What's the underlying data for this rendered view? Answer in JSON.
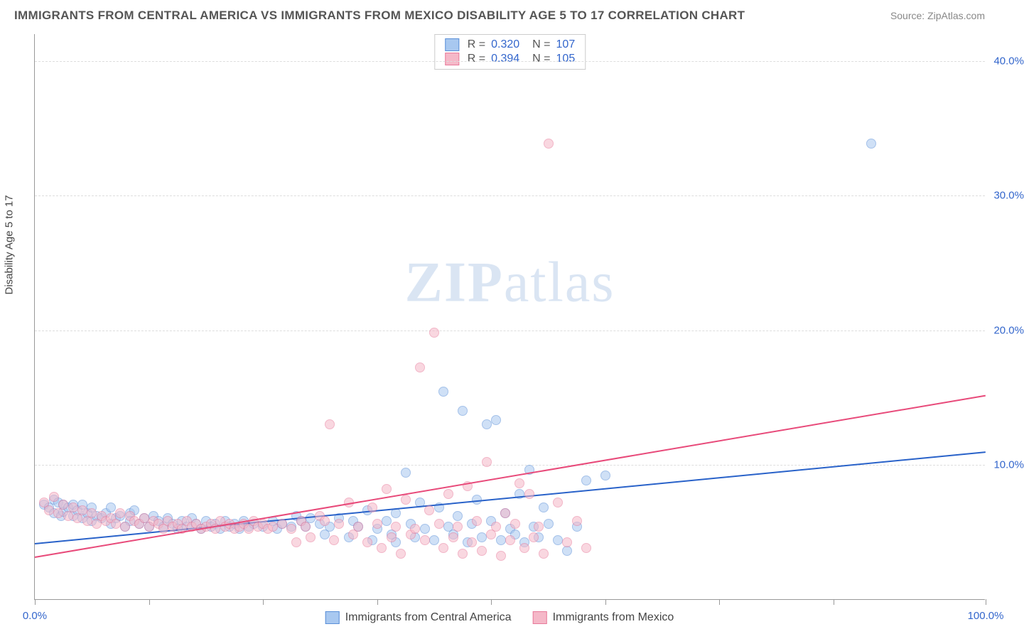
{
  "title": "IMMIGRANTS FROM CENTRAL AMERICA VS IMMIGRANTS FROM MEXICO DISABILITY AGE 5 TO 17 CORRELATION CHART",
  "source": "Source: ZipAtlas.com",
  "ylabel": "Disability Age 5 to 17",
  "watermark_bold": "ZIP",
  "watermark_light": "atlas",
  "chart": {
    "type": "scatter",
    "xlim": [
      0,
      100
    ],
    "ylim": [
      0,
      42
    ],
    "x_ticks": [
      0,
      12,
      24,
      36,
      48,
      60,
      72,
      84,
      100
    ],
    "x_tick_labels": {
      "0": "0.0%",
      "100": "100.0%"
    },
    "y_gridlines": [
      10,
      20,
      30,
      40
    ],
    "y_tick_labels": {
      "10": "10.0%",
      "20": "20.0%",
      "30": "30.0%",
      "40": "40.0%"
    },
    "grid_color": "#dddddd",
    "axis_color": "#999999",
    "background_color": "#ffffff",
    "point_radius": 7,
    "point_opacity": 0.55,
    "line_width": 2,
    "series": [
      {
        "name": "Immigrants from Central America",
        "color_fill": "#a8c8f0",
        "color_stroke": "#5a8fd8",
        "line_color": "#2962c9",
        "regression": {
          "x1": 0,
          "y1": 4.2,
          "x2": 100,
          "y2": 11.0
        },
        "stats": {
          "R": "0.320",
          "N": "107"
        },
        "points": [
          [
            1,
            7
          ],
          [
            1.5,
            6.8
          ],
          [
            2,
            7.4
          ],
          [
            2,
            6.4
          ],
          [
            2.5,
            7.2
          ],
          [
            2.8,
            6.2
          ],
          [
            3,
            7
          ],
          [
            3,
            6.5
          ],
          [
            3.5,
            6.8
          ],
          [
            4,
            7
          ],
          [
            4,
            6.2
          ],
          [
            4.5,
            6.6
          ],
          [
            5,
            7
          ],
          [
            5,
            6
          ],
          [
            5.5,
            6.4
          ],
          [
            6,
            6.8
          ],
          [
            6,
            5.8
          ],
          [
            6.5,
            6.2
          ],
          [
            7,
            6
          ],
          [
            7.5,
            6.4
          ],
          [
            8,
            5.6
          ],
          [
            8,
            6.8
          ],
          [
            8.5,
            6
          ],
          [
            9,
            6.2
          ],
          [
            9.5,
            5.4
          ],
          [
            10,
            6.4
          ],
          [
            10,
            5.8
          ],
          [
            10.5,
            6.6
          ],
          [
            11,
            5.6
          ],
          [
            11.5,
            6
          ],
          [
            12,
            5.4
          ],
          [
            12.5,
            6.2
          ],
          [
            13,
            5.8
          ],
          [
            13.5,
            5.4
          ],
          [
            14,
            6
          ],
          [
            14.5,
            5.6
          ],
          [
            15,
            5.2
          ],
          [
            15.5,
            5.8
          ],
          [
            16,
            5.4
          ],
          [
            16.5,
            6
          ],
          [
            17,
            5.6
          ],
          [
            17.5,
            5.2
          ],
          [
            18,
            5.8
          ],
          [
            18.5,
            5.4
          ],
          [
            19,
            5.6
          ],
          [
            19.5,
            5.2
          ],
          [
            20,
            5.8
          ],
          [
            20.5,
            5.4
          ],
          [
            21,
            5.6
          ],
          [
            21.5,
            5.2
          ],
          [
            22,
            5.8
          ],
          [
            22.5,
            5.4
          ],
          [
            23,
            5.6
          ],
          [
            24,
            5.4
          ],
          [
            25,
            5.8
          ],
          [
            25.5,
            5.2
          ],
          [
            26,
            5.6
          ],
          [
            27,
            5.4
          ],
          [
            27.5,
            6.2
          ],
          [
            28,
            5.8
          ],
          [
            28.5,
            5.4
          ],
          [
            29,
            6
          ],
          [
            30,
            5.6
          ],
          [
            30.5,
            4.8
          ],
          [
            31,
            5.4
          ],
          [
            32,
            6
          ],
          [
            33,
            4.6
          ],
          [
            33.5,
            5.8
          ],
          [
            34,
            5.4
          ],
          [
            35,
            6.6
          ],
          [
            35.5,
            4.4
          ],
          [
            36,
            5.2
          ],
          [
            37,
            5.8
          ],
          [
            37.5,
            4.8
          ],
          [
            38,
            6.4
          ],
          [
            38,
            4.2
          ],
          [
            39,
            9.4
          ],
          [
            39.5,
            5.6
          ],
          [
            40,
            4.6
          ],
          [
            40.5,
            7.2
          ],
          [
            41,
            5.2
          ],
          [
            42,
            4.4
          ],
          [
            42.5,
            6.8
          ],
          [
            43,
            15.4
          ],
          [
            43.5,
            5.4
          ],
          [
            44,
            4.8
          ],
          [
            44.5,
            6.2
          ],
          [
            45,
            14.0
          ],
          [
            45.5,
            4.2
          ],
          [
            46,
            5.6
          ],
          [
            46.5,
            7.4
          ],
          [
            47,
            4.6
          ],
          [
            47.5,
            13.0
          ],
          [
            48,
            5.8
          ],
          [
            48.5,
            13.3
          ],
          [
            49,
            4.4
          ],
          [
            49.5,
            6.4
          ],
          [
            50,
            5.2
          ],
          [
            50.5,
            4.8
          ],
          [
            51,
            7.8
          ],
          [
            51.5,
            4.2
          ],
          [
            52,
            9.6
          ],
          [
            52.5,
            5.4
          ],
          [
            53,
            4.6
          ],
          [
            53.5,
            6.8
          ],
          [
            54,
            5.6
          ],
          [
            55,
            4.4
          ],
          [
            56,
            3.6
          ],
          [
            57,
            5.4
          ],
          [
            58,
            8.8
          ],
          [
            60,
            9.2
          ],
          [
            88,
            33.8
          ]
        ]
      },
      {
        "name": "Immigrants from Mexico",
        "color_fill": "#f5b8c8",
        "color_stroke": "#e87a9a",
        "line_color": "#e84a7a",
        "regression": {
          "x1": 0,
          "y1": 3.2,
          "x2": 100,
          "y2": 15.2
        },
        "stats": {
          "R": "0.394",
          "N": "105"
        },
        "points": [
          [
            1,
            7.2
          ],
          [
            1.5,
            6.6
          ],
          [
            2,
            7.6
          ],
          [
            2.5,
            6.4
          ],
          [
            3,
            7
          ],
          [
            3.5,
            6.2
          ],
          [
            4,
            6.8
          ],
          [
            4.5,
            6
          ],
          [
            5,
            6.6
          ],
          [
            5.5,
            5.8
          ],
          [
            6,
            6.4
          ],
          [
            6.5,
            5.6
          ],
          [
            7,
            6.2
          ],
          [
            7.5,
            5.8
          ],
          [
            8,
            6
          ],
          [
            8.5,
            5.6
          ],
          [
            9,
            6.4
          ],
          [
            9.5,
            5.4
          ],
          [
            10,
            6.2
          ],
          [
            10.5,
            5.8
          ],
          [
            11,
            5.6
          ],
          [
            11.5,
            6
          ],
          [
            12,
            5.4
          ],
          [
            12.5,
            5.8
          ],
          [
            13,
            5.6
          ],
          [
            13.5,
            5.2
          ],
          [
            14,
            5.8
          ],
          [
            14.5,
            5.4
          ],
          [
            15,
            5.6
          ],
          [
            15.5,
            5.2
          ],
          [
            16,
            5.8
          ],
          [
            16.5,
            5.4
          ],
          [
            17,
            5.6
          ],
          [
            17.5,
            5.2
          ],
          [
            18,
            5.4
          ],
          [
            18.5,
            5.6
          ],
          [
            19,
            5.2
          ],
          [
            19.5,
            5.8
          ],
          [
            20,
            5.4
          ],
          [
            20.5,
            5.6
          ],
          [
            21,
            5.2
          ],
          [
            21.5,
            5.4
          ],
          [
            22,
            5.6
          ],
          [
            22.5,
            5.2
          ],
          [
            23,
            5.8
          ],
          [
            23.5,
            5.4
          ],
          [
            24,
            5.6
          ],
          [
            24.5,
            5.2
          ],
          [
            25,
            5.4
          ],
          [
            26,
            5.6
          ],
          [
            27,
            5.2
          ],
          [
            27.5,
            4.2
          ],
          [
            28,
            5.8
          ],
          [
            28.5,
            5.4
          ],
          [
            29,
            4.6
          ],
          [
            30,
            6.2
          ],
          [
            30.5,
            5.8
          ],
          [
            31,
            13.0
          ],
          [
            31.5,
            4.4
          ],
          [
            32,
            5.6
          ],
          [
            33,
            7.2
          ],
          [
            33.5,
            4.8
          ],
          [
            34,
            5.4
          ],
          [
            35,
            4.2
          ],
          [
            35.5,
            6.8
          ],
          [
            36,
            5.6
          ],
          [
            36.5,
            3.8
          ],
          [
            37,
            8.2
          ],
          [
            37.5,
            4.6
          ],
          [
            38,
            5.4
          ],
          [
            38.5,
            3.4
          ],
          [
            39,
            7.4
          ],
          [
            39.5,
            4.8
          ],
          [
            40,
            5.2
          ],
          [
            40.5,
            17.2
          ],
          [
            41,
            4.4
          ],
          [
            41.5,
            6.6
          ],
          [
            42,
            19.8
          ],
          [
            42.5,
            5.6
          ],
          [
            43,
            3.8
          ],
          [
            43.5,
            7.8
          ],
          [
            44,
            4.6
          ],
          [
            44.5,
            5.4
          ],
          [
            45,
            3.4
          ],
          [
            45.5,
            8.4
          ],
          [
            46,
            4.2
          ],
          [
            46.5,
            5.8
          ],
          [
            47,
            3.6
          ],
          [
            47.5,
            10.2
          ],
          [
            48,
            4.8
          ],
          [
            48.5,
            5.4
          ],
          [
            49,
            3.2
          ],
          [
            49.5,
            6.4
          ],
          [
            50,
            4.4
          ],
          [
            50.5,
            5.6
          ],
          [
            51,
            8.6
          ],
          [
            51.5,
            3.8
          ],
          [
            52,
            7.8
          ],
          [
            52.5,
            4.6
          ],
          [
            53,
            5.4
          ],
          [
            53.5,
            3.4
          ],
          [
            54,
            33.8
          ],
          [
            55,
            7.2
          ],
          [
            56,
            4.2
          ],
          [
            57,
            5.8
          ],
          [
            58,
            3.8
          ]
        ]
      }
    ]
  },
  "legend_labels": {
    "R": "R =",
    "N": "N ="
  }
}
